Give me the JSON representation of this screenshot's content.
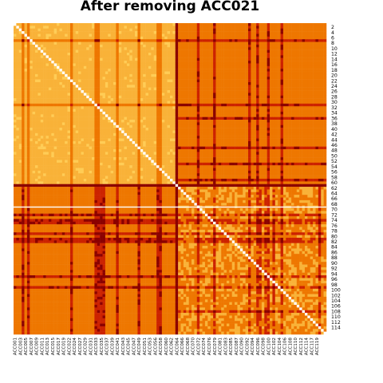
{
  "chart_data": {
    "type": "heatmap",
    "title": "After removing ACC021",
    "xlabel": "",
    "ylabel": "",
    "colormap": "YlOrRd",
    "colors": {
      "diagonal": "#ffffff",
      "low": "#8b0000",
      "mid_low": "#cc2200",
      "mid": "#ee7700",
      "high": "#f9b238",
      "very_high": "#ffcc55"
    },
    "n_rows": 116,
    "n_cols": 116,
    "gap_after_row_index": 68,
    "block_split_index": 60,
    "y_tick_labels": [
      "2",
      "4",
      "6",
      "8",
      "10",
      "12",
      "14",
      "16",
      "18",
      "20",
      "22",
      "24",
      "26",
      "28",
      "30",
      "32",
      "34",
      "36",
      "38",
      "40",
      "42",
      "44",
      "46",
      "48",
      "50",
      "52",
      "54",
      "56",
      "58",
      "60",
      "62",
      "64",
      "66",
      "68",
      "70",
      "72",
      "74",
      "76",
      "78",
      "80",
      "82",
      "84",
      "86",
      "88",
      "90",
      "92",
      "94",
      "96",
      "98",
      "100",
      "102",
      "104",
      "106",
      "108",
      "110",
      "112",
      "114"
    ],
    "x_tick_labels": [
      "ACC001",
      "ACC003",
      "ACC005",
      "ACC007",
      "ACC009",
      "ACC011",
      "ACC013",
      "ACC015",
      "ACC017",
      "ACC019",
      "ACC022",
      "ACC024",
      "ACC027",
      "ACC029",
      "ACC031",
      "ACC033",
      "ACC035",
      "ACC037",
      "ACC039",
      "ACC041",
      "ACC043",
      "ACC045",
      "ACC047",
      "ACC049",
      "ACC051",
      "ACC053",
      "ACC056",
      "ACC058",
      "ACC060",
      "ACC062",
      "ACC064",
      "ACC066",
      "ACC068",
      "ACC070",
      "ACC072",
      "ACC074",
      "ACC076",
      "ACC079",
      "ACC081",
      "ACC083",
      "ACC085",
      "ACC087",
      "ACC090",
      "ACC092",
      "ACC094",
      "ACC096",
      "ACC098",
      "ACC100",
      "ACC102",
      "ACC104",
      "ACC106",
      "ACC108",
      "ACC110",
      "ACC112",
      "ACC114",
      "ACC117",
      "ACC119"
    ]
  }
}
